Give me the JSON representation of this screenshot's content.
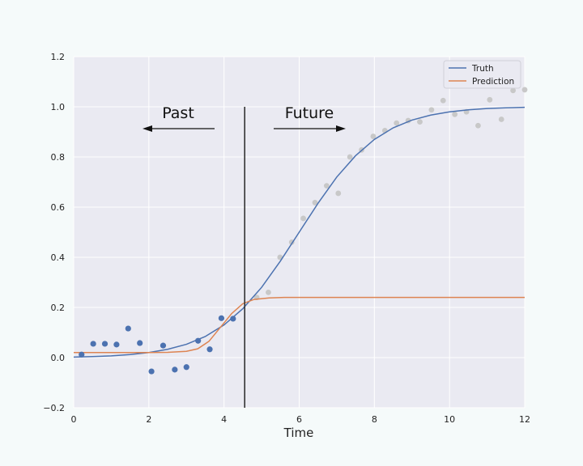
{
  "chart_data": {
    "type": "line",
    "title": "",
    "xlabel": "Time",
    "ylabel": "",
    "xlim": [
      0,
      12
    ],
    "ylim": [
      -0.2,
      1.2
    ],
    "x_ticks": [
      0,
      2,
      4,
      6,
      8,
      10,
      12
    ],
    "x_tick_labels": [
      "0",
      "2",
      "4",
      "6",
      "8",
      "10",
      "12"
    ],
    "y_ticks": [
      -0.2,
      0.0,
      0.2,
      0.4,
      0.6,
      0.8,
      1.0,
      1.2
    ],
    "y_tick_labels": [
      "−0.2",
      "0.0",
      "0.2",
      "0.4",
      "0.6",
      "0.8",
      "1.0",
      "1.2"
    ],
    "grid": true,
    "legend_position": "top-right",
    "divider_x": 4.55,
    "annotations": {
      "past_label": "Past",
      "future_label": "Future"
    },
    "series": [
      {
        "name": "Truth",
        "color": "#4c72b0",
        "x": [
          0,
          0.5,
          1,
          1.5,
          2,
          2.5,
          3,
          3.5,
          4,
          4.5,
          5,
          5.5,
          6,
          6.5,
          7,
          7.5,
          8,
          8.5,
          9,
          9.5,
          10,
          10.5,
          11,
          11.5,
          12
        ],
        "y": [
          0.002,
          0.004,
          0.007,
          0.012,
          0.02,
          0.033,
          0.053,
          0.084,
          0.13,
          0.195,
          0.28,
          0.385,
          0.5,
          0.615,
          0.72,
          0.805,
          0.87,
          0.916,
          0.947,
          0.967,
          0.98,
          0.988,
          0.993,
          0.996,
          0.998
        ]
      },
      {
        "name": "Prediction",
        "color": "#dd8452",
        "x": [
          0,
          1,
          2,
          2.5,
          3,
          3.3,
          3.6,
          3.9,
          4.2,
          4.5,
          4.8,
          5.2,
          5.6,
          6,
          8,
          10,
          12
        ],
        "y": [
          0.02,
          0.02,
          0.02,
          0.021,
          0.025,
          0.035,
          0.065,
          0.12,
          0.175,
          0.215,
          0.232,
          0.238,
          0.24,
          0.24,
          0.24,
          0.24,
          0.24
        ]
      }
    ],
    "observed_points": {
      "color": "#4c72b0",
      "x": [
        0.21,
        0.52,
        0.83,
        1.14,
        1.45,
        1.76,
        2.07,
        2.38,
        2.69,
        3.0,
        3.31,
        3.62,
        3.93,
        4.24
      ],
      "y": [
        0.012,
        0.055,
        0.055,
        0.052,
        0.116,
        0.058,
        -0.055,
        0.048,
        -0.048,
        -0.038,
        0.067,
        0.033,
        0.157,
        0.155
      ]
    },
    "future_points": {
      "color": "#c8c8c8",
      "x": [
        4.87,
        5.18,
        5.49,
        5.8,
        6.11,
        6.42,
        6.73,
        7.04,
        7.35,
        7.66,
        7.97,
        8.28,
        8.59,
        8.9,
        9.21,
        9.52,
        9.83,
        10.14,
        10.45,
        10.76,
        11.07,
        11.38,
        11.69,
        12.0
      ],
      "y": [
        0.24,
        0.26,
        0.4,
        0.46,
        0.555,
        0.618,
        0.685,
        0.655,
        0.8,
        0.828,
        0.882,
        0.905,
        0.935,
        0.945,
        0.94,
        0.988,
        1.025,
        0.97,
        0.98,
        0.925,
        1.028,
        0.95,
        1.065,
        1.068
      ]
    }
  }
}
